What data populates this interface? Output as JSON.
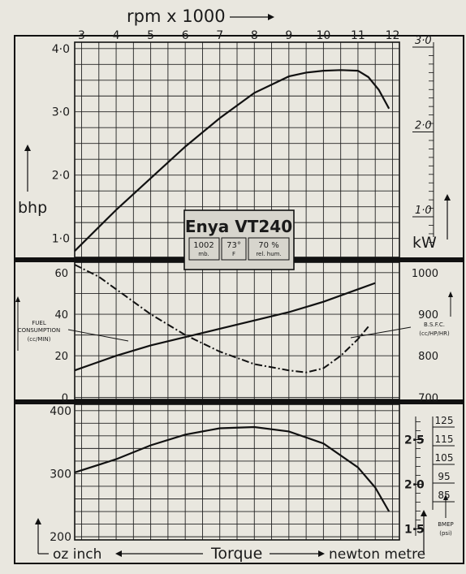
{
  "header": {
    "rpm_label": "rpm x 1000",
    "rpm_ticks": [
      "3",
      "4",
      "5",
      "6",
      "7",
      "8",
      "9",
      "10",
      "11",
      "12"
    ]
  },
  "engine_box": {
    "title": "Enya VT240",
    "cells": [
      {
        "value": "1002",
        "unit": "mb."
      },
      {
        "value": "73°",
        "unit": "F"
      },
      {
        "value": "70 %",
        "unit": "rel. hum."
      }
    ]
  },
  "power_panel": {
    "left_label": "bhp",
    "left_ticks": [
      "4·0",
      "3·0",
      "2·0",
      "1·0"
    ],
    "right_label": "kW",
    "right_ticks": [
      "3·0",
      "2·0",
      "1·0"
    ]
  },
  "consumption_panel": {
    "left_ticks": [
      "60",
      "40",
      "20",
      "0"
    ],
    "left_label_lines": [
      "FUEL",
      "CONSUMPTION",
      "(cc/MIN)"
    ],
    "right_ticks": [
      "1000",
      "900",
      "800",
      "700"
    ],
    "right_label_lines": [
      "B.S.F.C.",
      "(cc/HP/HR)"
    ]
  },
  "torque_panel": {
    "left_ticks": [
      "400",
      "300",
      "200"
    ],
    "right_ticks": [
      "2·5",
      "2·0",
      "1·5"
    ],
    "bmep_ticks": [
      "125",
      "115",
      "105",
      "95",
      "85"
    ],
    "bmep_label_lines": [
      "BMEP",
      "(psi)"
    ]
  },
  "footer": {
    "left": "oz inch",
    "center": "Torque",
    "right": "newton metre"
  },
  "chart_data": [
    {
      "type": "line",
      "title": "Enya VT240",
      "xlabel": "rpm x 1000",
      "ylabel": "bhp",
      "xlim": [
        2.8,
        12.2
      ],
      "ylim": [
        0.7,
        4.1
      ],
      "series": [
        {
          "name": "bhp",
          "x": [
            2.8,
            4,
            5,
            6,
            7,
            8,
            9,
            9.5,
            10,
            10.5,
            11,
            11.3,
            11.6,
            11.9
          ],
          "y": [
            0.8,
            1.45,
            1.95,
            2.45,
            2.9,
            3.3,
            3.56,
            3.62,
            3.65,
            3.66,
            3.65,
            3.55,
            3.35,
            3.05
          ]
        }
      ]
    },
    {
      "type": "line",
      "xlabel": "rpm x 1000",
      "ylim": [
        -1,
        65
      ],
      "series": [
        {
          "name": "FUEL CONSUMPTION (cc/MIN)",
          "x": [
            2.8,
            4,
            5,
            6,
            7,
            8,
            9,
            10,
            11,
            11.5
          ],
          "y": [
            13,
            20,
            25,
            29,
            33,
            37,
            41,
            46,
            52,
            55
          ]
        },
        {
          "name": "B.S.F.C. (cc/HP/HR)",
          "x": [
            2.8,
            3.5,
            4,
            5,
            6,
            7,
            8,
            9,
            9.5,
            10,
            10.5,
            11,
            11.3
          ],
          "y": [
            1050,
            990,
            960,
            900,
            850,
            810,
            780,
            765,
            760,
            770,
            800,
            840,
            870
          ]
        }
      ]
    },
    {
      "type": "line",
      "xlabel": "Torque",
      "ylabel": "oz inch",
      "ylim": [
        195,
        410
      ],
      "series": [
        {
          "name": "Torque",
          "x": [
            2.8,
            4,
            5,
            6,
            7,
            8,
            9,
            10,
            11,
            11.5,
            11.9
          ],
          "y": [
            302,
            323,
            345,
            362,
            372,
            374,
            367,
            348,
            310,
            278,
            240
          ]
        }
      ]
    }
  ]
}
